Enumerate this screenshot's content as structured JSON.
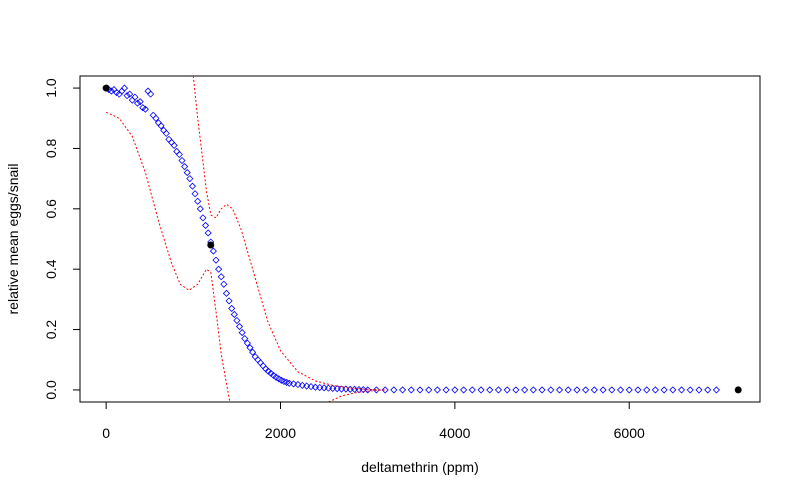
{
  "chart_data": {
    "type": "scatter",
    "title": "",
    "xlabel": "deltamethrin (ppm)",
    "ylabel": "relative mean eggs/snail",
    "xlim": [
      -300,
      7500
    ],
    "ylim": [
      -0.04,
      1.04
    ],
    "x_ticks": [
      0,
      2000,
      4000,
      6000
    ],
    "x_tick_labels": [
      "0",
      "2000",
      "4000",
      "6000"
    ],
    "y_ticks": [
      0.0,
      0.2,
      0.4,
      0.6,
      0.8,
      1.0
    ],
    "y_tick_labels": [
      "0.0",
      "0.2",
      "0.4",
      "0.6",
      "0.8",
      "1.0"
    ],
    "grid": false,
    "series": [
      {
        "marker": "diamond-open",
        "color": "#0000ff",
        "points": [
          [
            0,
            1.0
          ],
          [
            30,
            0.995
          ],
          [
            60,
            0.99
          ],
          [
            90,
            0.995
          ],
          [
            120,
            0.985
          ],
          [
            150,
            0.98
          ],
          [
            180,
            0.99
          ],
          [
            210,
            1.0
          ],
          [
            240,
            0.975
          ],
          [
            270,
            0.98
          ],
          [
            300,
            0.96
          ],
          [
            330,
            0.97
          ],
          [
            360,
            0.95
          ],
          [
            390,
            0.955
          ],
          [
            420,
            0.935
          ],
          [
            450,
            0.93
          ],
          [
            480,
            0.99
          ],
          [
            510,
            0.98
          ],
          [
            540,
            0.91
          ],
          [
            570,
            0.9
          ],
          [
            600,
            0.885
          ],
          [
            630,
            0.875
          ],
          [
            660,
            0.86
          ],
          [
            690,
            0.85
          ],
          [
            720,
            0.83
          ],
          [
            750,
            0.82
          ],
          [
            780,
            0.81
          ],
          [
            810,
            0.79
          ],
          [
            840,
            0.78
          ],
          [
            870,
            0.76
          ],
          [
            900,
            0.74
          ],
          [
            930,
            0.72
          ],
          [
            960,
            0.7
          ],
          [
            990,
            0.675
          ],
          [
            1020,
            0.65
          ],
          [
            1050,
            0.625
          ],
          [
            1080,
            0.6
          ],
          [
            1110,
            0.57
          ],
          [
            1140,
            0.545
          ],
          [
            1170,
            0.52
          ],
          [
            1200,
            0.49
          ],
          [
            1230,
            0.46
          ],
          [
            1260,
            0.43
          ],
          [
            1290,
            0.4
          ],
          [
            1320,
            0.375
          ],
          [
            1350,
            0.35
          ],
          [
            1380,
            0.32
          ],
          [
            1410,
            0.295
          ],
          [
            1440,
            0.27
          ],
          [
            1470,
            0.25
          ],
          [
            1500,
            0.23
          ],
          [
            1530,
            0.21
          ],
          [
            1560,
            0.19
          ],
          [
            1590,
            0.17
          ],
          [
            1620,
            0.155
          ],
          [
            1650,
            0.14
          ],
          [
            1680,
            0.125
          ],
          [
            1710,
            0.11
          ],
          [
            1740,
            0.1
          ],
          [
            1770,
            0.09
          ],
          [
            1800,
            0.08
          ],
          [
            1830,
            0.07
          ],
          [
            1860,
            0.062
          ],
          [
            1890,
            0.055
          ],
          [
            1920,
            0.048
          ],
          [
            1950,
            0.042
          ],
          [
            1980,
            0.037
          ],
          [
            2010,
            0.032
          ],
          [
            2040,
            0.028
          ],
          [
            2070,
            0.025
          ],
          [
            2100,
            0.022
          ],
          [
            2150,
            0.02
          ],
          [
            2200,
            0.018
          ],
          [
            2250,
            0.015
          ],
          [
            2300,
            0.013
          ],
          [
            2350,
            0.011
          ],
          [
            2400,
            0.009
          ],
          [
            2450,
            0.008
          ],
          [
            2500,
            0.007
          ],
          [
            2550,
            0.006
          ],
          [
            2600,
            0.005
          ],
          [
            2650,
            0.004
          ],
          [
            2700,
            0.003
          ],
          [
            2750,
            0.003
          ],
          [
            2800,
            0.002
          ],
          [
            2850,
            0.002
          ],
          [
            2900,
            0.001
          ],
          [
            2950,
            0.001
          ],
          [
            3000,
            0.0
          ],
          [
            3100,
            0.0
          ],
          [
            3200,
            0.0
          ],
          [
            3300,
            0.0
          ],
          [
            3400,
            0.0
          ],
          [
            3500,
            0.0
          ],
          [
            3600,
            0.0
          ],
          [
            3700,
            0.0
          ],
          [
            3800,
            0.0
          ],
          [
            3900,
            0.0
          ],
          [
            4000,
            0.0
          ],
          [
            4100,
            0.0
          ],
          [
            4200,
            0.0
          ],
          [
            4300,
            0.0
          ],
          [
            4400,
            0.0
          ],
          [
            4500,
            0.0
          ],
          [
            4600,
            0.0
          ],
          [
            4700,
            0.0
          ],
          [
            4800,
            0.0
          ],
          [
            4900,
            0.0
          ],
          [
            5000,
            0.0
          ],
          [
            5100,
            0.0
          ],
          [
            5200,
            0.0
          ],
          [
            5300,
            0.0
          ],
          [
            5400,
            0.0
          ],
          [
            5500,
            0.0
          ],
          [
            5600,
            0.0
          ],
          [
            5700,
            0.0
          ],
          [
            5800,
            0.0
          ],
          [
            5900,
            0.0
          ],
          [
            6000,
            0.0
          ],
          [
            6100,
            0.0
          ],
          [
            6200,
            0.0
          ],
          [
            6300,
            0.0
          ],
          [
            6400,
            0.0
          ],
          [
            6500,
            0.0
          ],
          [
            6600,
            0.0
          ],
          [
            6700,
            0.0
          ],
          [
            6800,
            0.0
          ],
          [
            6900,
            0.0
          ],
          [
            7000,
            0.0
          ]
        ]
      },
      {
        "marker": "filled-circle",
        "color": "#000000",
        "points": [
          [
            0,
            1.0
          ],
          [
            1200,
            0.48
          ],
          [
            7250,
            0.0
          ]
        ]
      },
      {
        "type": "line",
        "style": "dotted",
        "color": "#ff0000",
        "points": [
          [
            0,
            0.92
          ],
          [
            150,
            0.9
          ],
          [
            300,
            0.84
          ],
          [
            450,
            0.72
          ],
          [
            600,
            0.56
          ],
          [
            750,
            0.42
          ],
          [
            850,
            0.35
          ],
          [
            950,
            0.33
          ],
          [
            1050,
            0.35
          ],
          [
            1150,
            0.4
          ],
          [
            1200,
            0.39
          ],
          [
            1260,
            0.26
          ],
          [
            1320,
            0.12
          ],
          [
            1380,
            0.02
          ],
          [
            1420,
            -0.04
          ]
        ]
      },
      {
        "type": "line",
        "style": "dotted",
        "color": "#ff0000",
        "points": [
          [
            1000,
            1.04
          ],
          [
            1050,
            0.9
          ],
          [
            1100,
            0.78
          ],
          [
            1150,
            0.66
          ],
          [
            1200,
            0.58
          ],
          [
            1260,
            0.57
          ],
          [
            1320,
            0.6
          ],
          [
            1380,
            0.615
          ],
          [
            1450,
            0.6
          ],
          [
            1550,
            0.53
          ],
          [
            1700,
            0.38
          ],
          [
            1850,
            0.23
          ],
          [
            2000,
            0.13
          ],
          [
            2200,
            0.06
          ],
          [
            2400,
            0.03
          ],
          [
            2600,
            0.015
          ],
          [
            2800,
            0.006
          ],
          [
            3000,
            0.002
          ],
          [
            3200,
            0.0
          ]
        ]
      },
      {
        "type": "line",
        "style": "dotted",
        "color": "#ff0000",
        "points": [
          [
            2550,
            -0.04
          ],
          [
            2700,
            -0.02
          ],
          [
            2850,
            -0.01
          ],
          [
            3000,
            -0.004
          ],
          [
            3200,
            0.0
          ]
        ]
      }
    ]
  }
}
